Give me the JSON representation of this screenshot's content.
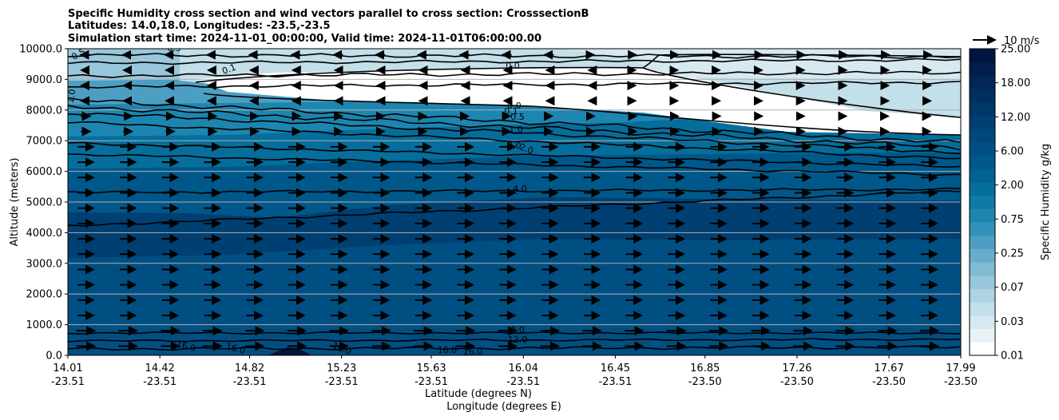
{
  "chart_data": {
    "type": "filled-contour cross section",
    "title_lines": [
      "Specific Humidity cross section and wind vectors parallel to cross section: CrosssectionB",
      "Latitudes: 14.0,18.0, Longitudes: -23.5,-23.5",
      "Simulation start time: 2024-11-01_00:00:00, Valid time: 2024-11-01T06:00:00.00"
    ],
    "ylabel": "Altitude (meters)",
    "xlabel_lines": [
      "Latitude (degrees N)",
      "Longitude (degrees E)"
    ],
    "ylim": [
      0,
      10000
    ],
    "y_ticks": [
      "0.0",
      "1000.0",
      "2000.0",
      "3000.0",
      "4000.0",
      "5000.0",
      "6000.0",
      "7000.0",
      "8000.0",
      "9000.0",
      "10000.0"
    ],
    "x_ticks": [
      {
        "lat": "14.01",
        "lon": "-23.51"
      },
      {
        "lat": "14.42",
        "lon": "-23.51"
      },
      {
        "lat": "14.82",
        "lon": "-23.51"
      },
      {
        "lat": "15.23",
        "lon": "-23.51"
      },
      {
        "lat": "15.63",
        "lon": "-23.51"
      },
      {
        "lat": "16.04",
        "lon": "-23.51"
      },
      {
        "lat": "16.45",
        "lon": "-23.51"
      },
      {
        "lat": "16.85",
        "lon": "-23.50"
      },
      {
        "lat": "17.26",
        "lon": "-23.50"
      },
      {
        "lat": "17.67",
        "lon": "-23.50"
      },
      {
        "lat": "17.99",
        "lon": "-23.50"
      }
    ],
    "grid": "horizontal lines at y ticks",
    "colorbar": {
      "label": "Specific Humidity g/kg",
      "ticks": [
        "0.01",
        "0.03",
        "0.07",
        "0.25",
        "0.75",
        "2.00",
        "6.00",
        "12.00",
        "18.00",
        "25.00"
      ],
      "colors": [
        "#ffffff",
        "#e9f3f7",
        "#d7e9f0",
        "#c3dfe9",
        "#aed3e2",
        "#98c7db",
        "#80bad3",
        "#66adcb",
        "#4c9fc2",
        "#3392b9",
        "#1d86b0",
        "#0e7aa6",
        "#066e9c",
        "#026293",
        "#00588a",
        "#004f82",
        "#00477a",
        "#003f71",
        "#003769",
        "#002f5f",
        "#002755",
        "#001f4a",
        "#001640"
      ]
    },
    "contour_labels": [
      "0.5",
      "0.5",
      "0.1",
      "1.0",
      "0.0",
      "0.0",
      "0.1",
      "0.5",
      "1.0",
      "2.0",
      "2.0",
      "4.0",
      "8.0",
      "12.0",
      "16.0",
      "16.0",
      "16.0",
      "16.0",
      "16.0"
    ],
    "vector_key": {
      "label": "10 m/s",
      "speed": 10
    }
  }
}
